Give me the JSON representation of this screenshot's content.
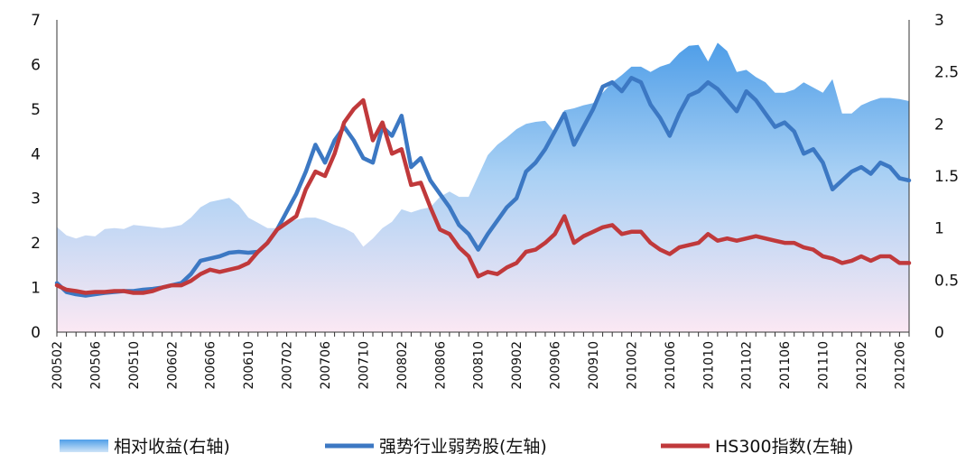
{
  "chart_data": {
    "type": "line",
    "x": [
      "200502",
      "200503",
      "200504",
      "200505",
      "200506",
      "200507",
      "200508",
      "200509",
      "200510",
      "200511",
      "200512",
      "200601",
      "200602",
      "200603",
      "200604",
      "200605",
      "200606",
      "200607",
      "200608",
      "200609",
      "200610",
      "200611",
      "200612",
      "200701",
      "200702",
      "200703",
      "200704",
      "200705",
      "200706",
      "200707",
      "200708",
      "200709",
      "200710",
      "200711",
      "200712",
      "200801",
      "200802",
      "200803",
      "200804",
      "200805",
      "200806",
      "200807",
      "200808",
      "200809",
      "200810",
      "200811",
      "200812",
      "200901",
      "200902",
      "200903",
      "200904",
      "200905",
      "200906",
      "200907",
      "200908",
      "200909",
      "200910",
      "200911",
      "200912",
      "201001",
      "201002",
      "201003",
      "201004",
      "201005",
      "201006",
      "201007",
      "201008",
      "201009",
      "201010",
      "201011",
      "201012",
      "201101",
      "201102",
      "201103",
      "201104",
      "201105",
      "201106",
      "201107",
      "201108",
      "201109",
      "201110",
      "201111",
      "201112",
      "201201",
      "201202",
      "201203",
      "201204",
      "201205",
      "201206",
      "201207"
    ],
    "x_tick_labels": [
      "200502",
      "200506",
      "200510",
      "200602",
      "200606",
      "200610",
      "200702",
      "200706",
      "200710",
      "200802",
      "200806",
      "200810",
      "200902",
      "200906",
      "200910",
      "201002",
      "201006",
      "201010",
      "201102",
      "201106",
      "201110",
      "201202",
      "201206"
    ],
    "y_left": {
      "ylim": [
        0,
        7
      ],
      "ticks": [
        "0",
        "1",
        "2",
        "3",
        "4",
        "5",
        "6",
        "7"
      ]
    },
    "y_right": {
      "ylim": [
        0,
        3
      ],
      "ticks": [
        "0",
        "0.5",
        "1",
        "1.5",
        "2",
        "2.5",
        "3"
      ]
    },
    "series": [
      {
        "name": "相对收益(右轴)",
        "type": "area",
        "axis": "right",
        "color": "#6aaeee",
        "values": [
          1.01,
          0.93,
          0.9,
          0.93,
          0.92,
          0.99,
          1.0,
          0.99,
          1.03,
          1.02,
          1.01,
          1.0,
          1.01,
          1.03,
          1.1,
          1.2,
          1.25,
          1.27,
          1.29,
          1.22,
          1.1,
          1.05,
          1.0,
          1.0,
          1.05,
          1.08,
          1.1,
          1.1,
          1.07,
          1.03,
          1.0,
          0.95,
          0.82,
          0.9,
          1.0,
          1.06,
          1.18,
          1.15,
          1.18,
          1.2,
          1.3,
          1.35,
          1.3,
          1.3,
          1.5,
          1.7,
          1.8,
          1.87,
          1.95,
          2.0,
          2.02,
          2.03,
          1.92,
          2.13,
          2.15,
          2.18,
          2.2,
          2.3,
          2.4,
          2.47,
          2.55,
          2.55,
          2.5,
          2.55,
          2.58,
          2.68,
          2.75,
          2.76,
          2.6,
          2.78,
          2.7,
          2.5,
          2.52,
          2.45,
          2.4,
          2.3,
          2.3,
          2.33,
          2.4,
          2.35,
          2.3,
          2.43,
          2.1,
          2.1,
          2.18,
          2.22,
          2.25,
          2.25,
          2.24,
          2.22
        ]
      },
      {
        "name": "强势行业弱势股(左轴)",
        "type": "line",
        "axis": "left",
        "color": "#3c78c3",
        "values": [
          1.1,
          0.9,
          0.85,
          0.82,
          0.85,
          0.88,
          0.9,
          0.92,
          0.92,
          0.95,
          0.97,
          1.0,
          1.05,
          1.1,
          1.3,
          1.6,
          1.65,
          1.7,
          1.78,
          1.8,
          1.78,
          1.8,
          2.0,
          2.3,
          2.7,
          3.1,
          3.6,
          4.2,
          3.8,
          4.3,
          4.6,
          4.3,
          3.9,
          3.8,
          4.6,
          4.4,
          4.85,
          3.7,
          3.9,
          3.4,
          3.1,
          2.8,
          2.4,
          2.2,
          1.85,
          2.2,
          2.5,
          2.8,
          3.0,
          3.6,
          3.8,
          4.1,
          4.5,
          4.9,
          4.2,
          4.6,
          5.0,
          5.5,
          5.6,
          5.4,
          5.7,
          5.6,
          5.1,
          4.8,
          4.4,
          4.9,
          5.3,
          5.4,
          5.6,
          5.45,
          5.2,
          4.95,
          5.4,
          5.2,
          4.9,
          4.6,
          4.7,
          4.5,
          4.0,
          4.1,
          3.8,
          3.2,
          3.4,
          3.6,
          3.7,
          3.55,
          3.8,
          3.7,
          3.45,
          3.4
        ]
      },
      {
        "name": "HS300指数(左轴)",
        "type": "line",
        "axis": "left",
        "color": "#c0393b",
        "values": [
          1.05,
          0.95,
          0.92,
          0.88,
          0.9,
          0.9,
          0.92,
          0.92,
          0.88,
          0.88,
          0.92,
          1.0,
          1.05,
          1.05,
          1.15,
          1.3,
          1.4,
          1.35,
          1.4,
          1.45,
          1.55,
          1.8,
          2.0,
          2.3,
          2.45,
          2.6,
          3.2,
          3.6,
          3.5,
          4.0,
          4.7,
          5.0,
          5.2,
          4.3,
          4.7,
          4.0,
          4.1,
          3.3,
          3.35,
          2.8,
          2.3,
          2.2,
          1.9,
          1.7,
          1.25,
          1.35,
          1.3,
          1.45,
          1.55,
          1.8,
          1.85,
          2.0,
          2.2,
          2.6,
          2.0,
          2.15,
          2.25,
          2.35,
          2.4,
          2.2,
          2.25,
          2.25,
          2.0,
          1.85,
          1.75,
          1.9,
          1.95,
          2.0,
          2.2,
          2.05,
          2.1,
          2.05,
          2.1,
          2.15,
          2.1,
          2.05,
          2.0,
          2.0,
          1.9,
          1.85,
          1.7,
          1.65,
          1.55,
          1.6,
          1.7,
          1.6,
          1.7,
          1.7,
          1.55,
          1.55
        ]
      }
    ],
    "legend": "bottom"
  }
}
